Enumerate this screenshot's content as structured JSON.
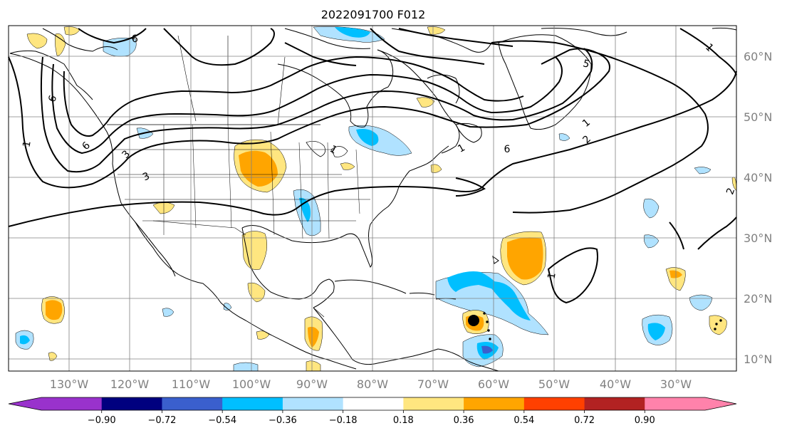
{
  "title": "2022091700 F012",
  "lat_ticks": [
    "60°N",
    "50°N",
    "40°N",
    "30°N",
    "20°N",
    "10°N"
  ],
  "lon_ticks": [
    "130°W",
    "120°W",
    "110°W",
    "100°W",
    "90°W",
    "80°W",
    "70°W",
    "60°W",
    "50°W",
    "40°W",
    "30°W"
  ],
  "colorbar": {
    "labels": [
      "−0.90",
      "−0.72",
      "−0.54",
      "−0.36",
      "−0.18",
      "0.18",
      "0.36",
      "0.54",
      "0.72",
      "0.90"
    ],
    "colors": [
      "#9932cc",
      "#00007f",
      "#3a5fcd",
      "#00bfff",
      "#b0e2ff",
      "#ffffff",
      "#ffe680",
      "#ffa500",
      "#ff4000",
      "#b22222",
      "#ff82ab",
      "#ff82ab"
    ],
    "extend": "both"
  },
  "contour_labels": [
    "6",
    "6",
    "1",
    "3",
    "3",
    "6",
    "5",
    "1",
    "1",
    "1",
    "2",
    "2",
    "6",
    "1",
    "1"
  ],
  "colors": {
    "land": "#000000",
    "grid": "#808080",
    "contour": "#000000"
  }
}
